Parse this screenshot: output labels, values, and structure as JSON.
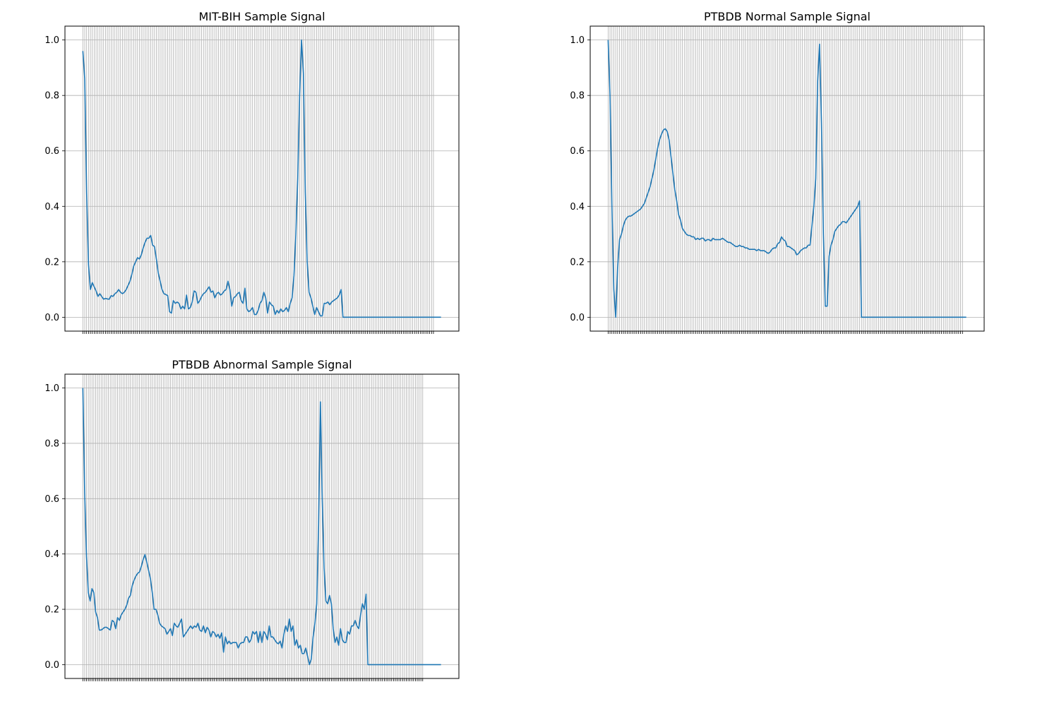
{
  "colors": {
    "line": "#1f77b4",
    "grid": "#b0b0b0",
    "axes": "#000000",
    "background": "#ffffff"
  },
  "chart_data": [
    {
      "type": "line",
      "title": "MIT-BIH Sample Signal",
      "xlabel": "",
      "ylabel": "",
      "ylim": [
        -0.05,
        1.05
      ],
      "yticks": [
        0.0,
        0.2,
        0.4,
        0.6,
        0.8,
        1.0
      ],
      "ytick_labels": [
        "0.0",
        "0.2",
        "0.4",
        "0.6",
        "0.8",
        "1.0"
      ],
      "xticks_count": 187,
      "grid": true,
      "series": [
        {
          "values": [
            0.96,
            0.86,
            0.45,
            0.19,
            0.1,
            0.125,
            0.11,
            0.095,
            0.075,
            0.085,
            0.075,
            0.065,
            0.068,
            0.066,
            0.065,
            0.078,
            0.075,
            0.085,
            0.09,
            0.1,
            0.09,
            0.085,
            0.09,
            0.1,
            0.115,
            0.13,
            0.155,
            0.185,
            0.2,
            0.215,
            0.21,
            0.225,
            0.25,
            0.27,
            0.285,
            0.285,
            0.295,
            0.26,
            0.255,
            0.21,
            0.16,
            0.13,
            0.1,
            0.085,
            0.082,
            0.078,
            0.02,
            0.015,
            0.06,
            0.05,
            0.055,
            0.05,
            0.03,
            0.04,
            0.03,
            0.08,
            0.03,
            0.035,
            0.055,
            0.095,
            0.09,
            0.05,
            0.06,
            0.075,
            0.085,
            0.09,
            0.1,
            0.11,
            0.09,
            0.095,
            0.07,
            0.085,
            0.09,
            0.08,
            0.085,
            0.095,
            0.1,
            0.13,
            0.1,
            0.04,
            0.07,
            0.075,
            0.085,
            0.09,
            0.06,
            0.05,
            0.105,
            0.03,
            0.02,
            0.025,
            0.035,
            0.01,
            0.01,
            0.025,
            0.05,
            0.06,
            0.09,
            0.07,
            0.015,
            0.055,
            0.045,
            0.04,
            0.01,
            0.025,
            0.015,
            0.03,
            0.02,
            0.025,
            0.035,
            0.02,
            0.05,
            0.07,
            0.15,
            0.3,
            0.5,
            0.8,
            1.0,
            0.88,
            0.45,
            0.2,
            0.09,
            0.07,
            0.04,
            0.01,
            0.035,
            0.02,
            0.005,
            0.005,
            0.05,
            0.05,
            0.055,
            0.045,
            0.055,
            0.06,
            0.065,
            0.07,
            0.08,
            0.1,
            0.0,
            0.0,
            0.0,
            0.0,
            0.0,
            0.0,
            0.0,
            0.0,
            0.0,
            0.0,
            0.0,
            0.0,
            0.0,
            0.0,
            0.0,
            0.0,
            0.0,
            0.0,
            0.0,
            0.0,
            0.0,
            0.0,
            0.0,
            0.0,
            0.0,
            0.0,
            0.0,
            0.0,
            0.0,
            0.0,
            0.0,
            0.0,
            0.0,
            0.0,
            0.0,
            0.0,
            0.0,
            0.0,
            0.0,
            0.0,
            0.0,
            0.0,
            0.0,
            0.0,
            0.0,
            0.0,
            0.0,
            0.0,
            0.0,
            0.0,
            0.0,
            0.0,
            0.0
          ]
        }
      ]
    },
    {
      "type": "line",
      "title": "PTBDB Normal Sample Signal",
      "xlabel": "",
      "ylabel": "",
      "ylim": [
        -0.05,
        1.05
      ],
      "yticks": [
        0.0,
        0.2,
        0.4,
        0.6,
        0.8,
        1.0
      ],
      "ytick_labels": [
        "0.0",
        "0.2",
        "0.4",
        "0.6",
        "0.8",
        "1.0"
      ],
      "xticks_count": 187,
      "grid": true,
      "series": [
        {
          "values": [
            1.0,
            0.8,
            0.4,
            0.1,
            0.0,
            0.18,
            0.28,
            0.3,
            0.33,
            0.35,
            0.36,
            0.365,
            0.365,
            0.37,
            0.375,
            0.38,
            0.385,
            0.39,
            0.4,
            0.41,
            0.43,
            0.45,
            0.47,
            0.5,
            0.53,
            0.57,
            0.61,
            0.64,
            0.66,
            0.675,
            0.68,
            0.67,
            0.64,
            0.58,
            0.52,
            0.46,
            0.42,
            0.37,
            0.35,
            0.32,
            0.31,
            0.3,
            0.295,
            0.295,
            0.29,
            0.29,
            0.28,
            0.285,
            0.28,
            0.285,
            0.285,
            0.275,
            0.28,
            0.28,
            0.275,
            0.285,
            0.28,
            0.28,
            0.28,
            0.28,
            0.285,
            0.28,
            0.275,
            0.27,
            0.27,
            0.265,
            0.26,
            0.255,
            0.255,
            0.26,
            0.255,
            0.255,
            0.25,
            0.25,
            0.245,
            0.245,
            0.245,
            0.245,
            0.24,
            0.245,
            0.24,
            0.24,
            0.24,
            0.235,
            0.23,
            0.235,
            0.245,
            0.25,
            0.25,
            0.265,
            0.27,
            0.29,
            0.28,
            0.275,
            0.255,
            0.255,
            0.25,
            0.245,
            0.24,
            0.225,
            0.23,
            0.24,
            0.245,
            0.25,
            0.25,
            0.26,
            0.26,
            0.33,
            0.4,
            0.5,
            0.85,
            0.985,
            0.7,
            0.3,
            0.04,
            0.04,
            0.22,
            0.26,
            0.28,
            0.31,
            0.32,
            0.33,
            0.335,
            0.345,
            0.345,
            0.34,
            0.35,
            0.36,
            0.37,
            0.38,
            0.39,
            0.4,
            0.42,
            0.0,
            0.0,
            0.0,
            0.0,
            0.0,
            0.0,
            0.0,
            0.0,
            0.0,
            0.0,
            0.0,
            0.0,
            0.0,
            0.0,
            0.0,
            0.0,
            0.0,
            0.0,
            0.0,
            0.0,
            0.0,
            0.0,
            0.0,
            0.0,
            0.0,
            0.0,
            0.0,
            0.0,
            0.0,
            0.0,
            0.0,
            0.0,
            0.0,
            0.0,
            0.0,
            0.0,
            0.0,
            0.0,
            0.0,
            0.0,
            0.0,
            0.0,
            0.0,
            0.0,
            0.0,
            0.0,
            0.0,
            0.0,
            0.0,
            0.0,
            0.0,
            0.0,
            0.0,
            0.0,
            0.0,
            0.0
          ]
        }
      ]
    },
    {
      "type": "line",
      "title": "PTBDB Abnormal Sample Signal",
      "xlabel": "",
      "ylabel": "",
      "ylim": [
        -0.05,
        1.05
      ],
      "yticks": [
        0.0,
        0.2,
        0.4,
        0.6,
        0.8,
        1.0
      ],
      "ytick_labels": [
        "0.0",
        "0.2",
        "0.4",
        "0.6",
        "0.8",
        "1.0"
      ],
      "xticks_count": 187,
      "grid": true,
      "series": [
        {
          "values": [
            1.0,
            0.62,
            0.39,
            0.26,
            0.23,
            0.275,
            0.26,
            0.19,
            0.17,
            0.125,
            0.125,
            0.13,
            0.135,
            0.135,
            0.13,
            0.125,
            0.16,
            0.155,
            0.13,
            0.17,
            0.16,
            0.18,
            0.19,
            0.2,
            0.215,
            0.24,
            0.25,
            0.285,
            0.305,
            0.32,
            0.33,
            0.335,
            0.355,
            0.38,
            0.398,
            0.37,
            0.34,
            0.31,
            0.26,
            0.2,
            0.2,
            0.18,
            0.15,
            0.14,
            0.135,
            0.13,
            0.11,
            0.12,
            0.13,
            0.105,
            0.15,
            0.14,
            0.135,
            0.15,
            0.165,
            0.1,
            0.11,
            0.12,
            0.13,
            0.14,
            0.13,
            0.14,
            0.135,
            0.15,
            0.125,
            0.12,
            0.14,
            0.115,
            0.135,
            0.125,
            0.1,
            0.12,
            0.115,
            0.1,
            0.11,
            0.095,
            0.115,
            0.045,
            0.1,
            0.075,
            0.085,
            0.075,
            0.08,
            0.08,
            0.08,
            0.06,
            0.075,
            0.08,
            0.08,
            0.1,
            0.1,
            0.08,
            0.09,
            0.12,
            0.11,
            0.12,
            0.08,
            0.12,
            0.08,
            0.12,
            0.11,
            0.09,
            0.14,
            0.1,
            0.1,
            0.09,
            0.08,
            0.075,
            0.085,
            0.06,
            0.11,
            0.14,
            0.12,
            0.165,
            0.12,
            0.14,
            0.07,
            0.09,
            0.06,
            0.07,
            0.04,
            0.04,
            0.06,
            0.03,
            0.0,
            0.02,
            0.1,
            0.15,
            0.22,
            0.5,
            0.95,
            0.6,
            0.35,
            0.23,
            0.22,
            0.25,
            0.22,
            0.13,
            0.08,
            0.1,
            0.07,
            0.13,
            0.09,
            0.08,
            0.08,
            0.12,
            0.11,
            0.14,
            0.14,
            0.16,
            0.14,
            0.13,
            0.18,
            0.22,
            0.2,
            0.255,
            0.0,
            0.0,
            0.0,
            0.0,
            0.0,
            0.0,
            0.0,
            0.0,
            0.0,
            0.0,
            0.0,
            0.0,
            0.0,
            0.0,
            0.0,
            0.0,
            0.0,
            0.0,
            0.0,
            0.0,
            0.0,
            0.0,
            0.0,
            0.0,
            0.0,
            0.0,
            0.0,
            0.0,
            0.0,
            0.0,
            0.0,
            0.0,
            0.0,
            0.0,
            0.0,
            0.0,
            0.0,
            0.0,
            0.0,
            0.0,
            0.0
          ]
        }
      ]
    }
  ]
}
